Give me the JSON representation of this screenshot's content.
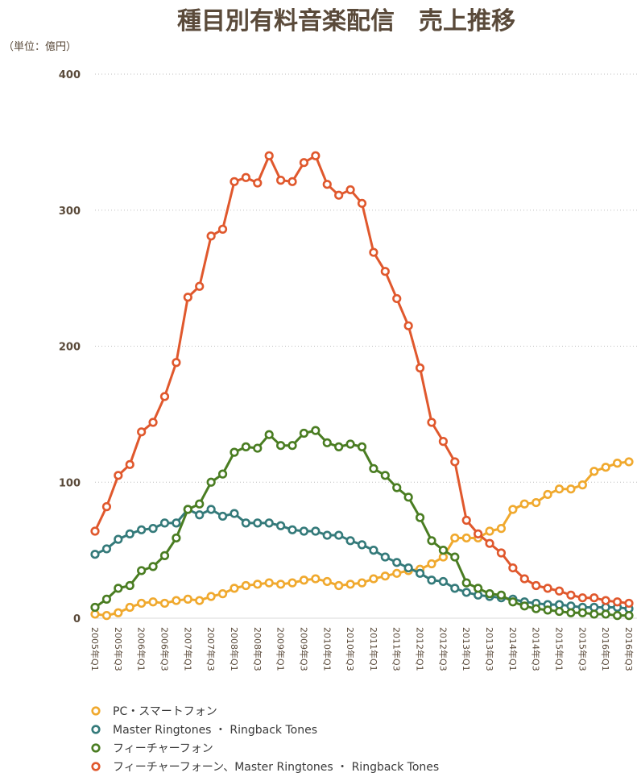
{
  "chart_data": {
    "type": "line",
    "title": "種目別有料音楽配信　売上推移",
    "unit_label": "（単位：億円）",
    "ylim": [
      0,
      400
    ],
    "yticks": [
      0,
      100,
      200,
      300,
      400
    ],
    "grid": true,
    "legend_position": "bottom-left",
    "categories": [
      "2005年Q1",
      "2005年Q2",
      "2005年Q3",
      "2005年Q4",
      "2006年Q1",
      "2006年Q2",
      "2006年Q3",
      "2006年Q4",
      "2007年Q1",
      "2007年Q2",
      "2007年Q3",
      "2007年Q4",
      "2008年Q1",
      "2008年Q2",
      "2008年Q3",
      "2008年Q4",
      "2009年Q1",
      "2009年Q2",
      "2009年Q3",
      "2009年Q4",
      "2010年Q1",
      "2010年Q2",
      "2010年Q3",
      "2010年Q4",
      "2011年Q1",
      "2011年Q2",
      "2011年Q3",
      "2011年Q4",
      "2012年Q1",
      "2012年Q2",
      "2012年Q3",
      "2012年Q4",
      "2013年Q1",
      "2013年Q2",
      "2013年Q3",
      "2013年Q4",
      "2014年Q1",
      "2014年Q2",
      "2014年Q3",
      "2014年Q4",
      "2015年Q1",
      "2015年Q2",
      "2015年Q3",
      "2015年Q4",
      "2016年Q1",
      "2016年Q2",
      "2016年Q3"
    ],
    "xtick_labels": [
      "2005年Q1",
      "2005年Q3",
      "2006年Q1",
      "2006年Q3",
      "2007年Q1",
      "2007年Q3",
      "2008年Q1",
      "2008年Q3",
      "2009年Q1",
      "2009年Q3",
      "2010年Q1",
      "2010年Q3",
      "2011年Q1",
      "2011年Q3",
      "2012年Q1",
      "2012年Q3",
      "2013年Q1",
      "2013年Q3",
      "2014年Q1",
      "2014年Q3",
      "2015年Q1",
      "2015年Q3",
      "2016年Q1",
      "2016年Q3"
    ],
    "series": [
      {
        "name": "PC・スマートフォン",
        "color": "#f0a92e",
        "values": [
          3,
          2,
          4,
          8,
          11,
          12,
          11,
          13,
          14,
          13,
          16,
          18,
          22,
          24,
          25,
          26,
          25,
          26,
          28,
          29,
          27,
          24,
          25,
          26,
          29,
          31,
          33,
          35,
          36,
          40,
          45,
          59,
          59,
          59,
          64,
          66,
          80,
          84,
          85,
          91,
          95,
          95,
          98,
          108,
          111,
          114,
          115
        ]
      },
      {
        "name": "Master Ringtones ・ Ringback Tones",
        "color": "#347a7a",
        "values": [
          47,
          51,
          58,
          62,
          65,
          66,
          70,
          70,
          80,
          76,
          80,
          75,
          77,
          70,
          70,
          70,
          68,
          65,
          64,
          64,
          61,
          61,
          57,
          54,
          50,
          45,
          41,
          37,
          33,
          28,
          27,
          22,
          19,
          17,
          16,
          15,
          14,
          12,
          11,
          10,
          10,
          9,
          8,
          8,
          8,
          8,
          7
        ]
      },
      {
        "name": "フィーチャーフォン",
        "color": "#4a7d22",
        "values": [
          8,
          14,
          22,
          24,
          35,
          38,
          46,
          59,
          80,
          84,
          100,
          106,
          122,
          126,
          125,
          135,
          127,
          127,
          136,
          138,
          129,
          126,
          128,
          126,
          110,
          105,
          96,
          89,
          74,
          57,
          50,
          45,
          26,
          22,
          18,
          17,
          12,
          9,
          7,
          6,
          5,
          4,
          4,
          3,
          3,
          2,
          2
        ]
      },
      {
        "name": "フィーチャーフォーン、Master Ringtones ・ Ringback Tones",
        "color": "#e0582d",
        "values": [
          64,
          82,
          105,
          113,
          137,
          144,
          163,
          188,
          236,
          244,
          281,
          286,
          321,
          324,
          320,
          340,
          322,
          321,
          335,
          340,
          319,
          311,
          315,
          305,
          269,
          255,
          235,
          215,
          184,
          144,
          130,
          115,
          72,
          62,
          55,
          48,
          37,
          29,
          24,
          22,
          20,
          17,
          15,
          15,
          13,
          12,
          11
        ]
      }
    ]
  }
}
